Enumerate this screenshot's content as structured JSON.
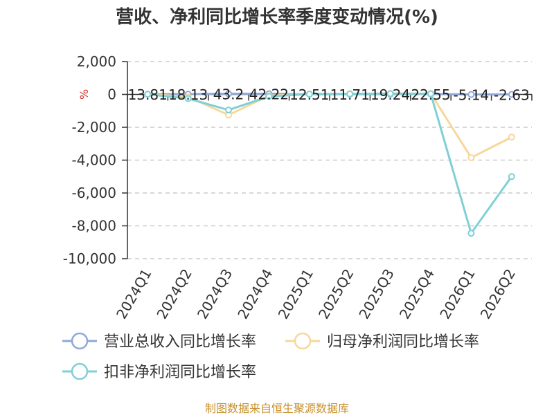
{
  "chart_data": {
    "type": "line",
    "title": "营收、净利同比增长率季度变动情况(%)",
    "unit_label": "%",
    "categories": [
      "2024Q1",
      "2024Q2",
      "2024Q3",
      "2024Q4",
      "2025Q1",
      "2025Q2",
      "2025Q3",
      "2025Q4",
      "2026Q1",
      "2026Q2"
    ],
    "ylim": [
      -10000,
      2000
    ],
    "yticks": [
      2000,
      0,
      -2000,
      -4000,
      -6000,
      -8000,
      -10000
    ],
    "ytick_labels": [
      "2,000",
      "0",
      "-2,000",
      "-4,000",
      "-6,000",
      "-8,000",
      "-10,000"
    ],
    "grid": true,
    "legend_position": "bottom",
    "series": [
      {
        "name": "营业总收入同比增长率",
        "color": "#8fa8d8",
        "values": [
          13.81,
          18.13,
          43.2,
          42.22,
          12.51,
          11.71,
          19.24,
          22.55,
          -5.14,
          -2.63
        ],
        "labels": [
          "13.81",
          "18.13",
          "43.2",
          "42.22",
          "12.51",
          "11.71",
          "19.24",
          "22.55",
          "-5.14",
          "-2.63"
        ]
      },
      {
        "name": "归母净利润同比增长率",
        "color": "#f7d79a",
        "values": [
          20,
          -150,
          -1250,
          -80,
          30,
          40,
          60,
          50,
          -3850,
          -2600
        ]
      },
      {
        "name": "扣非净利润同比增长率",
        "color": "#7fd0d6",
        "values": [
          10,
          -250,
          -950,
          -120,
          20,
          30,
          50,
          40,
          -8450,
          -5000
        ]
      }
    ],
    "source": "制图数据来自恒生聚源数据库"
  }
}
